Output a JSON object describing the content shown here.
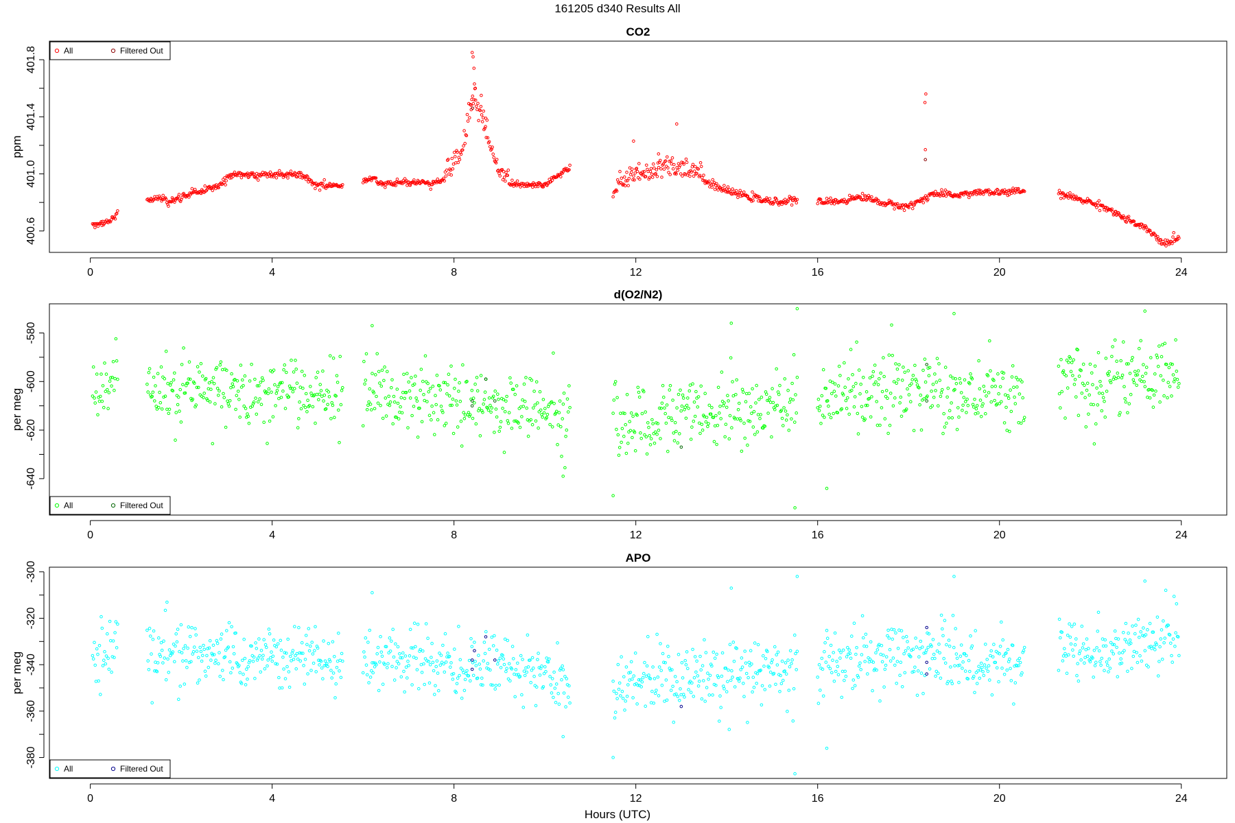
{
  "figure": {
    "title": "161205   d340   Results All",
    "xlabel": "Hours (UTC)"
  },
  "chart_data": [
    {
      "type": "scatter",
      "title": "CO2",
      "ylabel": "ppm",
      "xlim": [
        -0.9,
        25.0
      ],
      "ylim": [
        400.45,
        401.93
      ],
      "xticks": [
        0,
        4,
        8,
        12,
        16,
        20,
        24
      ],
      "yticks": [
        400.6,
        401.0,
        401.4,
        401.8
      ],
      "ytick_labels": [
        "400.6",
        "401.0",
        "401.4",
        "401.8"
      ],
      "legend": {
        "position": "top-left",
        "entries": [
          "All",
          "Filtered Out"
        ]
      },
      "series_colors": {
        "All": "#ff0000",
        "Filtered Out": "#8b0000"
      },
      "segments": [
        {
          "x_start": 0.05,
          "x_end": 0.6,
          "anchors": [
            [
              0.05,
              400.65
            ],
            [
              0.3,
              400.66
            ],
            [
              0.45,
              400.67
            ],
            [
              0.6,
              400.72
            ]
          ]
        },
        {
          "x_start": 1.25,
          "x_end": 5.55,
          "anchors": [
            [
              1.25,
              400.82
            ],
            [
              1.6,
              400.83
            ],
            [
              1.75,
              400.8
            ],
            [
              2.2,
              400.86
            ],
            [
              2.8,
              400.91
            ],
            [
              3.1,
              401.0
            ],
            [
              3.6,
              400.99
            ],
            [
              4.2,
              401.0
            ],
            [
              4.6,
              401.0
            ],
            [
              5.0,
              400.92
            ],
            [
              5.55,
              400.92
            ]
          ]
        },
        {
          "x_start": 6.0,
          "x_end": 10.55,
          "anchors": [
            [
              6.0,
              400.94
            ],
            [
              6.2,
              400.97
            ],
            [
              6.4,
              400.93
            ],
            [
              7.0,
              400.94
            ],
            [
              7.5,
              400.93
            ],
            [
              7.9,
              400.98
            ],
            [
              8.2,
              401.12
            ],
            [
              8.4,
              401.5
            ],
            [
              8.6,
              401.35
            ],
            [
              8.8,
              401.15
            ],
            [
              9.0,
              400.97
            ],
            [
              9.3,
              400.92
            ],
            [
              10.0,
              400.92
            ],
            [
              10.3,
              400.99
            ],
            [
              10.55,
              401.04
            ]
          ]
        },
        {
          "x_start": 11.5,
          "x_end": 15.55,
          "anchors": [
            [
              11.5,
              400.87
            ],
            [
              11.8,
              400.92
            ],
            [
              12.0,
              400.95
            ],
            [
              12.5,
              400.98
            ],
            [
              13.0,
              401.0
            ],
            [
              13.5,
              400.95
            ],
            [
              14.0,
              400.88
            ],
            [
              14.5,
              400.84
            ],
            [
              15.0,
              400.8
            ],
            [
              15.55,
              400.82
            ]
          ]
        },
        {
          "x_start": 16.0,
          "x_end": 20.55,
          "anchors": [
            [
              16.0,
              400.8
            ],
            [
              16.5,
              400.81
            ],
            [
              17.0,
              400.84
            ],
            [
              17.5,
              400.79
            ],
            [
              18.0,
              400.77
            ],
            [
              18.3,
              400.82
            ],
            [
              18.5,
              400.86
            ],
            [
              19.0,
              400.85
            ],
            [
              19.5,
              400.87
            ],
            [
              20.0,
              400.87
            ],
            [
              20.55,
              400.88
            ]
          ]
        },
        {
          "x_start": 21.3,
          "x_end": 23.95,
          "anchors": [
            [
              21.3,
              400.86
            ],
            [
              21.8,
              400.82
            ],
            [
              22.3,
              400.77
            ],
            [
              22.8,
              400.68
            ],
            [
              23.3,
              400.6
            ],
            [
              23.6,
              400.51
            ],
            [
              23.95,
              400.55
            ]
          ]
        }
      ],
      "spikes": [
        [
          8.4,
          401.85
        ],
        [
          8.42,
          401.82
        ],
        [
          8.44,
          401.74
        ],
        [
          8.45,
          401.63
        ],
        [
          8.47,
          401.6
        ],
        [
          8.38,
          401.45
        ],
        [
          8.6,
          401.55
        ],
        [
          8.65,
          401.44
        ],
        [
          8.7,
          401.39
        ],
        [
          18.38,
          401.56
        ],
        [
          18.36,
          401.5
        ],
        [
          18.37,
          401.17
        ],
        [
          12.9,
          401.35
        ],
        [
          12.5,
          401.14
        ],
        [
          11.95,
          401.23
        ]
      ],
      "filtered": [
        [
          8.41,
          401.46
        ],
        [
          18.37,
          401.1
        ]
      ],
      "noise": 0.012,
      "scatter_extra": 0.06,
      "scatter_range": [
        [
          7.8,
          9.2
        ],
        [
          11.6,
          13.5
        ]
      ],
      "density": 60
    },
    {
      "type": "scatter",
      "title": "d(O2/N2)",
      "ylabel": "per meg",
      "xlim": [
        -0.9,
        25.0
      ],
      "ylim": [
        -655,
        -568
      ],
      "xticks": [
        0,
        4,
        8,
        12,
        16,
        20,
        24
      ],
      "yticks": [
        -640,
        -620,
        -600,
        -580
      ],
      "ytick_labels": [
        "-640",
        "-620",
        "-600",
        "-580"
      ],
      "legend": {
        "position": "bottom-left",
        "entries": [
          "All",
          "Filtered Out"
        ]
      },
      "series_colors": {
        "All": "#00ff00",
        "Filtered Out": "#006400"
      },
      "segments": [
        {
          "x_start": 0.05,
          "x_end": 0.6,
          "anchors": [
            [
              0.05,
              -605
            ],
            [
              0.6,
              -598
            ]
          ]
        },
        {
          "x_start": 1.25,
          "x_end": 5.55,
          "anchors": [
            [
              1.25,
              -601
            ],
            [
              2.5,
              -604
            ],
            [
              3.5,
              -605
            ],
            [
              4.5,
              -603
            ],
            [
              5.55,
              -607
            ]
          ]
        },
        {
          "x_start": 6.0,
          "x_end": 10.55,
          "anchors": [
            [
              6.0,
              -603
            ],
            [
              7.5,
              -609
            ],
            [
              8.5,
              -609
            ],
            [
              9.5,
              -610
            ],
            [
              10.55,
              -613
            ]
          ]
        },
        {
          "x_start": 11.5,
          "x_end": 15.55,
          "anchors": [
            [
              11.5,
              -618
            ],
            [
              12.5,
              -614
            ],
            [
              13.5,
              -612
            ],
            [
              14.5,
              -611
            ],
            [
              15.55,
              -609
            ]
          ]
        },
        {
          "x_start": 16.0,
          "x_end": 20.55,
          "anchors": [
            [
              16.0,
              -609
            ],
            [
              17.0,
              -604
            ],
            [
              18.0,
              -603
            ],
            [
              19.0,
              -605
            ],
            [
              20.0,
              -606
            ],
            [
              20.55,
              -603
            ]
          ]
        },
        {
          "x_start": 21.3,
          "x_end": 23.95,
          "anchors": [
            [
              21.3,
              -600
            ],
            [
              22.3,
              -603
            ],
            [
              23.0,
              -599
            ],
            [
              23.95,
              -596
            ]
          ]
        }
      ],
      "spikes": [
        [
          6.2,
          -577
        ],
        [
          15.55,
          -570
        ],
        [
          14.1,
          -576
        ],
        [
          19.0,
          -572
        ],
        [
          23.2,
          -571
        ],
        [
          11.5,
          -647
        ],
        [
          15.5,
          -652
        ],
        [
          10.4,
          -639
        ],
        [
          16.2,
          -644
        ]
      ],
      "filtered": [
        [
          8.4,
          -608
        ],
        [
          8.4,
          -610
        ],
        [
          8.7,
          -599
        ],
        [
          8.9,
          -608
        ],
        [
          13.0,
          -627
        ],
        [
          18.4,
          -593
        ],
        [
          18.4,
          -608
        ]
      ],
      "noise": 7,
      "scatter_extra": 0,
      "scatter_range": [],
      "density": 55
    },
    {
      "type": "scatter",
      "title": "APO",
      "ylabel": "per meg",
      "xlim": [
        -0.9,
        25.0
      ],
      "ylim": [
        -389,
        -298
      ],
      "xticks": [
        0,
        4,
        8,
        12,
        16,
        20,
        24
      ],
      "yticks": [
        -380,
        -360,
        -340,
        -320,
        -300
      ],
      "ytick_labels": [
        "-380",
        "-360",
        "-340",
        "-320",
        "-300"
      ],
      "legend": {
        "position": "bottom-left",
        "entries": [
          "All",
          "Filtered Out"
        ]
      },
      "series_colors": {
        "All": "#00ffff",
        "Filtered Out": "#00008b"
      },
      "segments": [
        {
          "x_start": 0.05,
          "x_end": 0.6,
          "anchors": [
            [
              0.05,
              -337
            ],
            [
              0.6,
              -330
            ]
          ]
        },
        {
          "x_start": 1.25,
          "x_end": 5.55,
          "anchors": [
            [
              1.25,
              -334
            ],
            [
              2.5,
              -336
            ],
            [
              3.5,
              -338
            ],
            [
              4.5,
              -336
            ],
            [
              5.55,
              -340
            ]
          ]
        },
        {
          "x_start": 6.0,
          "x_end": 10.55,
          "anchors": [
            [
              6.0,
              -336
            ],
            [
              7.5,
              -341
            ],
            [
              8.5,
              -340
            ],
            [
              9.5,
              -343
            ],
            [
              10.55,
              -347
            ]
          ]
        },
        {
          "x_start": 11.5,
          "x_end": 15.55,
          "anchors": [
            [
              11.5,
              -350
            ],
            [
              12.5,
              -346
            ],
            [
              13.5,
              -345
            ],
            [
              14.5,
              -344
            ],
            [
              15.55,
              -343
            ]
          ]
        },
        {
          "x_start": 16.0,
          "x_end": 20.55,
          "anchors": [
            [
              16.0,
              -342
            ],
            [
              17.0,
              -337
            ],
            [
              18.0,
              -335
            ],
            [
              19.0,
              -338
            ],
            [
              20.0,
              -339
            ],
            [
              20.55,
              -335
            ]
          ]
        },
        {
          "x_start": 21.3,
          "x_end": 23.95,
          "anchors": [
            [
              21.3,
              -331
            ],
            [
              22.3,
              -335
            ],
            [
              23.0,
              -331
            ],
            [
              23.95,
              -327
            ]
          ]
        }
      ],
      "spikes": [
        [
          6.2,
          -309
        ],
        [
          15.55,
          -302
        ],
        [
          14.1,
          -307
        ],
        [
          19.0,
          -302
        ],
        [
          23.2,
          -304
        ],
        [
          11.5,
          -380
        ],
        [
          15.5,
          -387
        ],
        [
          10.4,
          -371
        ],
        [
          16.2,
          -376
        ]
      ],
      "filtered": [
        [
          8.4,
          -338
        ],
        [
          8.4,
          -342
        ],
        [
          8.45,
          -334
        ],
        [
          8.7,
          -328
        ],
        [
          8.9,
          -338
        ],
        [
          13.0,
          -358
        ],
        [
          18.4,
          -324
        ],
        [
          18.4,
          -344
        ],
        [
          18.4,
          -339
        ]
      ],
      "noise": 7,
      "scatter_extra": 0,
      "scatter_range": [],
      "density": 55
    }
  ]
}
